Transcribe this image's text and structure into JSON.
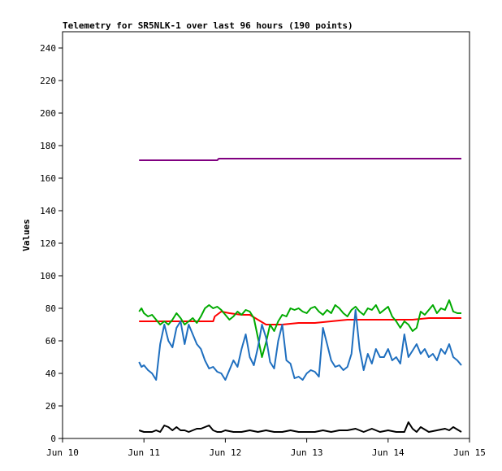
{
  "chart_data": {
    "type": "line",
    "title": "Telemetry for SR5NLK-1 over last 96 hours (190 points)",
    "xlabel": "",
    "ylabel": "Values",
    "xlim": [
      "Jun 10",
      "Jun 15"
    ],
    "ylim": [
      0,
      250
    ],
    "x_ticks": [
      "Jun 10",
      "Jun 11",
      "Jun 12",
      "Jun 13",
      "Jun 14",
      "Jun 15"
    ],
    "y_ticks": [
      0,
      20,
      40,
      60,
      80,
      100,
      120,
      140,
      160,
      180,
      200,
      220,
      240
    ],
    "grid": false,
    "legend": "none",
    "series": [
      {
        "color": "#800080",
        "x": [
          10.94,
          11.9,
          11.92,
          12.5,
          13.0,
          13.5,
          14.0,
          14.5,
          14.9
        ],
        "y": [
          171,
          171,
          172,
          172,
          172,
          172,
          172,
          172,
          172
        ]
      },
      {
        "color": "#ff0000",
        "x": [
          10.94,
          11.85,
          11.87,
          11.95,
          12.05,
          12.2,
          12.3,
          12.4,
          12.5,
          12.7,
          12.9,
          13.1,
          13.3,
          13.5,
          13.7,
          13.9,
          14.1,
          14.3,
          14.5,
          14.7,
          14.9
        ],
        "y": [
          72,
          72,
          75,
          78,
          77,
          76,
          76,
          73,
          70,
          70,
          71,
          71,
          72,
          73,
          73,
          73,
          73,
          73,
          74,
          74,
          74
        ]
      },
      {
        "color": "#00aa00",
        "x": [
          10.94,
          10.97,
          11.0,
          11.05,
          11.1,
          11.15,
          11.2,
          11.25,
          11.3,
          11.35,
          11.4,
          11.45,
          11.5,
          11.55,
          11.6,
          11.65,
          11.7,
          11.75,
          11.8,
          11.85,
          11.9,
          11.95,
          12.0,
          12.05,
          12.1,
          12.15,
          12.2,
          12.25,
          12.3,
          12.35,
          12.4,
          12.45,
          12.5,
          12.55,
          12.6,
          12.65,
          12.7,
          12.75,
          12.8,
          12.85,
          12.9,
          12.95,
          13.0,
          13.05,
          13.1,
          13.15,
          13.2,
          13.25,
          13.3,
          13.35,
          13.4,
          13.45,
          13.5,
          13.55,
          13.6,
          13.65,
          13.7,
          13.75,
          13.8,
          13.85,
          13.9,
          13.95,
          14.0,
          14.05,
          14.1,
          14.15,
          14.2,
          14.25,
          14.3,
          14.35,
          14.4,
          14.45,
          14.5,
          14.55,
          14.6,
          14.65,
          14.7,
          14.75,
          14.8,
          14.85,
          14.9
        ],
        "y": [
          78,
          80,
          77,
          75,
          76,
          73,
          70,
          72,
          70,
          73,
          77,
          74,
          70,
          72,
          74,
          71,
          75,
          80,
          82,
          80,
          81,
          79,
          76,
          73,
          75,
          78,
          76,
          79,
          78,
          74,
          62,
          50,
          59,
          70,
          66,
          72,
          76,
          75,
          80,
          79,
          80,
          78,
          77,
          80,
          81,
          78,
          76,
          79,
          77,
          82,
          80,
          77,
          75,
          79,
          81,
          78,
          76,
          80,
          79,
          82,
          77,
          79,
          81,
          75,
          72,
          68,
          72,
          70,
          66,
          68,
          78,
          76,
          79,
          82,
          77,
          80,
          79,
          85,
          78,
          77,
          77
        ]
      },
      {
        "color": "#1f6fbf",
        "x": [
          10.94,
          10.97,
          11.0,
          11.05,
          11.1,
          11.15,
          11.2,
          11.25,
          11.3,
          11.35,
          11.4,
          11.45,
          11.5,
          11.55,
          11.6,
          11.65,
          11.7,
          11.75,
          11.8,
          11.85,
          11.9,
          11.95,
          12.0,
          12.05,
          12.1,
          12.15,
          12.2,
          12.25,
          12.3,
          12.35,
          12.4,
          12.45,
          12.5,
          12.55,
          12.6,
          12.65,
          12.7,
          12.75,
          12.8,
          12.85,
          12.9,
          12.95,
          13.0,
          13.05,
          13.1,
          13.15,
          13.2,
          13.25,
          13.3,
          13.35,
          13.4,
          13.45,
          13.5,
          13.55,
          13.6,
          13.65,
          13.7,
          13.75,
          13.8,
          13.85,
          13.9,
          13.95,
          14.0,
          14.05,
          14.1,
          14.15,
          14.2,
          14.25,
          14.3,
          14.35,
          14.4,
          14.45,
          14.5,
          14.55,
          14.6,
          14.65,
          14.7,
          14.75,
          14.8,
          14.85,
          14.9
        ],
        "y": [
          47,
          44,
          45,
          42,
          40,
          36,
          58,
          70,
          60,
          56,
          68,
          72,
          58,
          70,
          64,
          58,
          55,
          48,
          43,
          44,
          41,
          40,
          36,
          42,
          48,
          44,
          55,
          64,
          50,
          45,
          56,
          70,
          62,
          47,
          43,
          60,
          70,
          48,
          46,
          37,
          38,
          36,
          40,
          42,
          41,
          38,
          68,
          58,
          48,
          44,
          45,
          42,
          44,
          52,
          79,
          55,
          42,
          52,
          46,
          55,
          50,
          50,
          55,
          48,
          50,
          46,
          64,
          50,
          54,
          58,
          52,
          55,
          50,
          52,
          48,
          55,
          52,
          58,
          50,
          48,
          45
        ]
      },
      {
        "color": "#000000",
        "x": [
          10.94,
          11.0,
          11.05,
          11.1,
          11.15,
          11.2,
          11.25,
          11.3,
          11.35,
          11.4,
          11.45,
          11.5,
          11.55,
          11.6,
          11.65,
          11.7,
          11.75,
          11.8,
          11.85,
          11.9,
          11.95,
          12.0,
          12.1,
          12.2,
          12.3,
          12.4,
          12.5,
          12.6,
          12.7,
          12.8,
          12.9,
          13.0,
          13.1,
          13.2,
          13.3,
          13.4,
          13.5,
          13.6,
          13.7,
          13.8,
          13.9,
          14.0,
          14.1,
          14.2,
          14.25,
          14.3,
          14.35,
          14.4,
          14.5,
          14.6,
          14.7,
          14.75,
          14.8,
          14.9
        ],
        "y": [
          5,
          4,
          4,
          4,
          5,
          4,
          8,
          7,
          5,
          7,
          5,
          5,
          4,
          5,
          6,
          6,
          7,
          8,
          5,
          4,
          4,
          5,
          4,
          4,
          5,
          4,
          5,
          4,
          4,
          5,
          4,
          4,
          4,
          5,
          4,
          5,
          5,
          6,
          4,
          6,
          4,
          5,
          4,
          4,
          10,
          6,
          4,
          7,
          4,
          5,
          6,
          5,
          7,
          4
        ]
      }
    ]
  }
}
